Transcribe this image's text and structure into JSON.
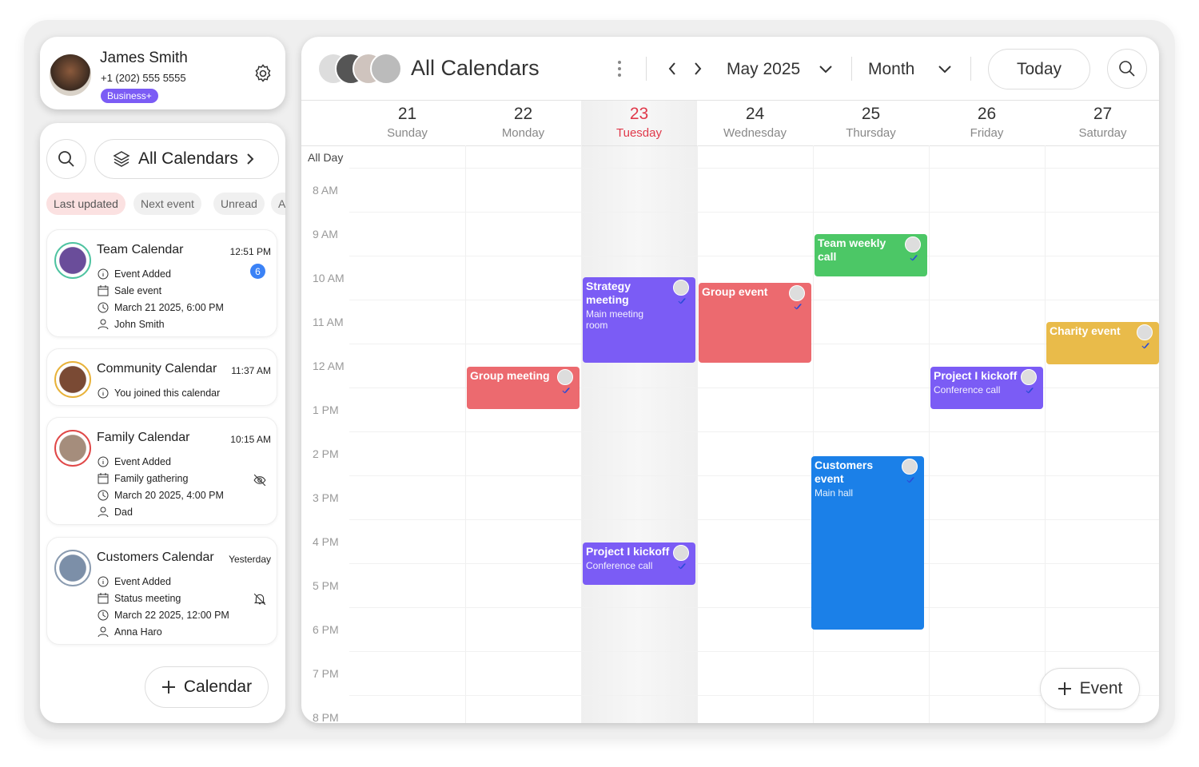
{
  "profile": {
    "name": "James Smith",
    "phone": "+1 (202) 555 5555",
    "badge": "Business+"
  },
  "sidebar": {
    "calendar_selector": "All Calendars",
    "filters": [
      "Last updated",
      "Next event",
      "Unread",
      "All"
    ],
    "cards": [
      {
        "title": "Team Calendar",
        "time": "12:51 PM",
        "unread": "6",
        "lines": [
          "Event Added",
          "Sale event",
          "March 21 2025, 6:00 PM",
          "John Smith"
        ]
      },
      {
        "title": "Community Calendar",
        "time": "11:37 AM",
        "lines": [
          "You joined this calendar"
        ]
      },
      {
        "title": "Family Calendar",
        "time": "10:15 AM",
        "lines": [
          "Event Added",
          "Family gathering",
          "March 20 2025, 4:00 PM",
          "Dad"
        ]
      },
      {
        "title": "Customers Calendar",
        "time": "Yesterday",
        "lines": [
          "Event Added",
          "Status meeting",
          "March 22 2025, 12:00 PM",
          "Anna Haro"
        ]
      }
    ],
    "add_button": "Calendar"
  },
  "header": {
    "title": "All Calendars",
    "month": "May 2025",
    "view": "Month",
    "today": "Today"
  },
  "days": [
    {
      "date": "21",
      "weekday": "Sunday"
    },
    {
      "date": "22",
      "weekday": "Monday"
    },
    {
      "date": "23",
      "weekday": "Tuesday"
    },
    {
      "date": "24",
      "weekday": "Wednesday"
    },
    {
      "date": "25",
      "weekday": "Thursday"
    },
    {
      "date": "26",
      "weekday": "Friday"
    },
    {
      "date": "27",
      "weekday": "Saturday"
    }
  ],
  "all_day": "All Day",
  "hours": [
    "8 AM",
    "9 AM",
    "10 AM",
    "11 AM",
    "12 AM",
    "1 PM",
    "2 PM",
    "3 PM",
    "4 PM",
    "5 PM",
    "6 PM",
    "7 PM",
    "8 PM"
  ],
  "events": [
    {
      "title": "Team weekly call"
    },
    {
      "title": "Strategy meeting",
      "subtitle": "Main meeting room"
    },
    {
      "title": "Group event"
    },
    {
      "title": "Charity event"
    },
    {
      "title": "Group meeting"
    },
    {
      "title": "Project I kickoff",
      "subtitle": "Conference call"
    },
    {
      "title": "Customers event",
      "subtitle": "Main hall"
    },
    {
      "title": "Project I kickoff",
      "subtitle": "Conference call"
    }
  ],
  "add_event": "Event"
}
